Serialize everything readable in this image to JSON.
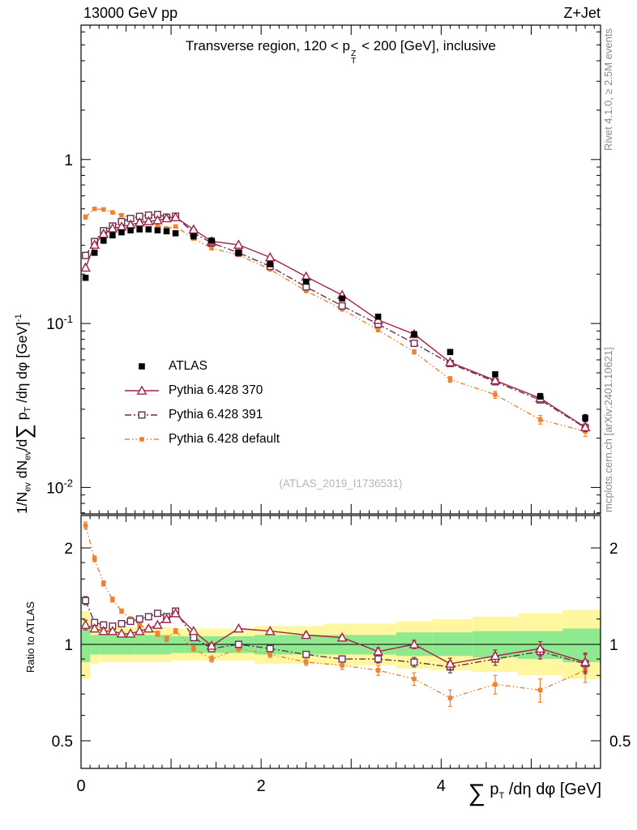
{
  "header": {
    "left": "13000 GeV pp",
    "right": "Z+Jet"
  },
  "panel_title": {
    "prefix": "Transverse region, 120 < p",
    "sup": "Z",
    "sub": "T",
    "suffix": " < 200 [GeV], inclusive"
  },
  "watermark": "(ATLAS_2019_I1736531)",
  "side_notes": {
    "top": "Rivet 4.1.0, ≥ 2.5M events",
    "bottom": "mcplots.cern.ch [arXiv:2401.10621]"
  },
  "axis_labels": {
    "y_main": {
      "p1": "1/N",
      "s1": "ev",
      "p2": " dN",
      "s2": "ev",
      "p3": "/d",
      "sum": "∑",
      "p4": " p",
      "s3": "T",
      "p5": " /dη dφ  [GeV]",
      "sup": "-1"
    },
    "y_ratio": "Ratio to ATLAS",
    "x": {
      "sum": "∑",
      "p1": " p",
      "s1": "T",
      "p2": " /dη dφ [GeV]"
    }
  },
  "legend": {
    "items": [
      {
        "label": "ATLAS"
      },
      {
        "label": "Pythia 6.428 370"
      },
      {
        "label": "Pythia 6.428 391"
      },
      {
        "label": "Pythia 6.428 default"
      }
    ]
  },
  "colors": {
    "atlas": "#000000",
    "py370": "#a32344",
    "py391": "#6a2e52",
    "pydefault": "#ef8230",
    "band_yellow": "#fff7a0",
    "band_green": "#8fe98f",
    "watermark": "#b5b5b5",
    "side_note": "#8a8a8a"
  },
  "chart_data": [
    {
      "type": "line",
      "panel": "main",
      "yscale": "log",
      "xlim": [
        0,
        5.77
      ],
      "ylim": [
        0.0069,
        6.6
      ],
      "xticks": [
        0,
        2,
        4
      ],
      "yticks": [
        {
          "v": 1,
          "base": "1",
          "exp": ""
        },
        {
          "v": 0.1,
          "base": "10",
          "exp": "-1"
        },
        {
          "v": 0.01,
          "base": "10",
          "exp": "-2"
        }
      ],
      "x": [
        0.05,
        0.15,
        0.25,
        0.35,
        0.45,
        0.55,
        0.65,
        0.75,
        0.85,
        0.95,
        1.05,
        1.25,
        1.45,
        1.75,
        2.1,
        2.5,
        2.9,
        3.3,
        3.7,
        4.1,
        4.6,
        5.1,
        5.6
      ],
      "series": [
        {
          "name": "ATLAS",
          "color": "#000000",
          "marker": "square",
          "line": "none",
          "values": [
            0.19,
            0.27,
            0.32,
            0.345,
            0.36,
            0.37,
            0.375,
            0.375,
            0.37,
            0.365,
            0.355,
            0.34,
            0.32,
            0.27,
            0.23,
            0.18,
            0.142,
            0.11,
            0.086,
            0.067,
            0.049,
            0.036,
            0.0265
          ],
          "err_rel": [
            0.03,
            0.02,
            0.015,
            0.015,
            0.015,
            0.015,
            0.015,
            0.015,
            0.015,
            0.015,
            0.015,
            0.015,
            0.015,
            0.015,
            0.015,
            0.02,
            0.02,
            0.02,
            0.025,
            0.03,
            0.035,
            0.04,
            0.05
          ]
        },
        {
          "name": "Pythia 6.428 370",
          "color": "#a32344",
          "marker": "triangle-open",
          "line": "solid",
          "values": [
            0.219,
            0.302,
            0.352,
            0.38,
            0.389,
            0.4,
            0.413,
            0.42,
            0.426,
            0.438,
            0.444,
            0.374,
            0.317,
            0.302,
            0.253,
            0.193,
            0.149,
            0.105,
            0.086,
            0.058,
            0.045,
            0.035,
            0.0233
          ],
          "err_rel": [
            0.03,
            0.02,
            0.015,
            0.012,
            0.012,
            0.012,
            0.012,
            0.012,
            0.012,
            0.012,
            0.012,
            0.012,
            0.012,
            0.012,
            0.012,
            0.015,
            0.015,
            0.02,
            0.02,
            0.025,
            0.03,
            0.04,
            0.05
          ]
        },
        {
          "name": "Pythia 6.428 391",
          "color": "#6a2e52",
          "marker": "square-open",
          "line": "dashdot",
          "values": [
            0.26,
            0.316,
            0.368,
            0.393,
            0.418,
            0.437,
            0.45,
            0.458,
            0.462,
            0.445,
            0.451,
            0.357,
            0.31,
            0.27,
            0.223,
            0.167,
            0.128,
            0.099,
            0.0757,
            0.057,
            0.0441,
            0.0342,
            0.0231
          ],
          "err_rel": [
            0.03,
            0.02,
            0.015,
            0.012,
            0.012,
            0.012,
            0.012,
            0.012,
            0.012,
            0.012,
            0.012,
            0.012,
            0.012,
            0.012,
            0.012,
            0.015,
            0.015,
            0.02,
            0.02,
            0.025,
            0.03,
            0.04,
            0.05
          ]
        },
        {
          "name": "Pythia 6.428 default",
          "color": "#ef8230",
          "marker": "square-small",
          "line": "dashdotdot",
          "values": [
            0.446,
            0.5,
            0.496,
            0.476,
            0.457,
            0.444,
            0.431,
            0.42,
            0.4,
            0.38,
            0.39,
            0.33,
            0.288,
            0.262,
            0.214,
            0.158,
            0.122,
            0.0913,
            0.0671,
            0.0456,
            0.0368,
            0.0259,
            0.022
          ],
          "err_rel": [
            0.03,
            0.02,
            0.015,
            0.012,
            0.012,
            0.012,
            0.012,
            0.012,
            0.012,
            0.012,
            0.012,
            0.012,
            0.012,
            0.012,
            0.015,
            0.018,
            0.02,
            0.025,
            0.03,
            0.04,
            0.05,
            0.06,
            0.07
          ]
        }
      ]
    },
    {
      "type": "ratio",
      "panel": "ratio",
      "yscale": "log",
      "xlim": [
        0,
        5.77
      ],
      "ylim": [
        0.41,
        2.525
      ],
      "reference_line": 1,
      "yticks_major": [
        {
          "v": 0.5,
          "label": "0.5"
        },
        {
          "v": 1,
          "label": "1"
        },
        {
          "v": 2,
          "label": "2"
        }
      ],
      "yticks_minor": [
        0.6,
        0.7,
        0.8,
        0.9,
        1.2,
        1.4,
        1.6,
        1.8
      ],
      "x": [
        0.05,
        0.15,
        0.25,
        0.35,
        0.45,
        0.55,
        0.65,
        0.75,
        0.85,
        0.95,
        1.05,
        1.25,
        1.45,
        1.75,
        2.1,
        2.5,
        2.9,
        3.3,
        3.7,
        4.1,
        4.6,
        5.1,
        5.6
      ],
      "bands": {
        "edges": [
          0,
          0.1,
          0.2,
          0.3,
          0.4,
          0.5,
          0.6,
          0.7,
          0.8,
          0.9,
          1.0,
          1.15,
          1.35,
          1.6,
          1.925,
          2.3,
          2.7,
          3.1,
          3.5,
          3.9,
          4.35,
          4.85,
          5.35,
          5.77
        ],
        "green_lo": [
          0.88,
          0.93,
          0.93,
          0.93,
          0.93,
          0.93,
          0.93,
          0.93,
          0.93,
          0.93,
          0.94,
          0.94,
          0.94,
          0.94,
          0.93,
          0.93,
          0.93,
          0.93,
          0.92,
          0.92,
          0.91,
          0.9,
          0.88
        ],
        "green_hi": [
          1.12,
          1.07,
          1.07,
          1.07,
          1.07,
          1.07,
          1.07,
          1.07,
          1.07,
          1.07,
          1.06,
          1.06,
          1.06,
          1.06,
          1.07,
          1.07,
          1.07,
          1.07,
          1.09,
          1.09,
          1.1,
          1.1,
          1.12
        ],
        "yellow_lo": [
          0.78,
          0.87,
          0.88,
          0.88,
          0.88,
          0.88,
          0.88,
          0.88,
          0.88,
          0.88,
          0.89,
          0.89,
          0.89,
          0.89,
          0.87,
          0.87,
          0.86,
          0.86,
          0.84,
          0.83,
          0.82,
          0.8,
          0.78
        ],
        "yellow_hi": [
          1.27,
          1.15,
          1.13,
          1.13,
          1.13,
          1.13,
          1.13,
          1.13,
          1.13,
          1.13,
          1.12,
          1.12,
          1.12,
          1.12,
          1.14,
          1.14,
          1.16,
          1.16,
          1.18,
          1.2,
          1.22,
          1.25,
          1.28
        ]
      },
      "series": [
        {
          "name": "Pythia 6.428 370",
          "color": "#a32344",
          "marker": "triangle-open",
          "line": "solid",
          "values": [
            1.15,
            1.12,
            1.1,
            1.1,
            1.08,
            1.08,
            1.1,
            1.12,
            1.15,
            1.2,
            1.25,
            1.1,
            0.99,
            1.12,
            1.1,
            1.07,
            1.05,
            0.95,
            1.0,
            0.87,
            0.92,
            0.97,
            0.88
          ],
          "err": [
            0.04,
            0.02,
            0.015,
            0.015,
            0.015,
            0.015,
            0.015,
            0.015,
            0.015,
            0.015,
            0.015,
            0.015,
            0.015,
            0.015,
            0.015,
            0.02,
            0.02,
            0.025,
            0.03,
            0.035,
            0.04,
            0.05,
            0.06
          ]
        },
        {
          "name": "Pythia 6.428 391",
          "color": "#6a2e52",
          "marker": "square-open",
          "line": "dashdot",
          "values": [
            1.37,
            1.17,
            1.15,
            1.14,
            1.16,
            1.18,
            1.2,
            1.22,
            1.25,
            1.22,
            1.27,
            1.05,
            0.97,
            1.0,
            0.97,
            0.93,
            0.9,
            0.9,
            0.88,
            0.85,
            0.9,
            0.95,
            0.87
          ],
          "err": [
            0.04,
            0.02,
            0.015,
            0.015,
            0.015,
            0.015,
            0.015,
            0.015,
            0.015,
            0.015,
            0.015,
            0.015,
            0.015,
            0.015,
            0.015,
            0.02,
            0.02,
            0.025,
            0.03,
            0.035,
            0.04,
            0.05,
            0.06
          ]
        },
        {
          "name": "Pythia 6.428 default",
          "color": "#ef8230",
          "marker": "square-small",
          "line": "dashdotdot",
          "values": [
            2.35,
            1.85,
            1.55,
            1.38,
            1.27,
            1.2,
            1.15,
            1.12,
            1.08,
            1.04,
            1.1,
            0.97,
            0.9,
            0.97,
            0.93,
            0.88,
            0.86,
            0.83,
            0.78,
            0.68,
            0.75,
            0.72,
            0.83
          ],
          "err": [
            0.06,
            0.04,
            0.03,
            0.025,
            0.02,
            0.02,
            0.02,
            0.02,
            0.02,
            0.02,
            0.02,
            0.02,
            0.02,
            0.02,
            0.02,
            0.02,
            0.025,
            0.03,
            0.035,
            0.04,
            0.05,
            0.06,
            0.07
          ]
        }
      ]
    }
  ]
}
